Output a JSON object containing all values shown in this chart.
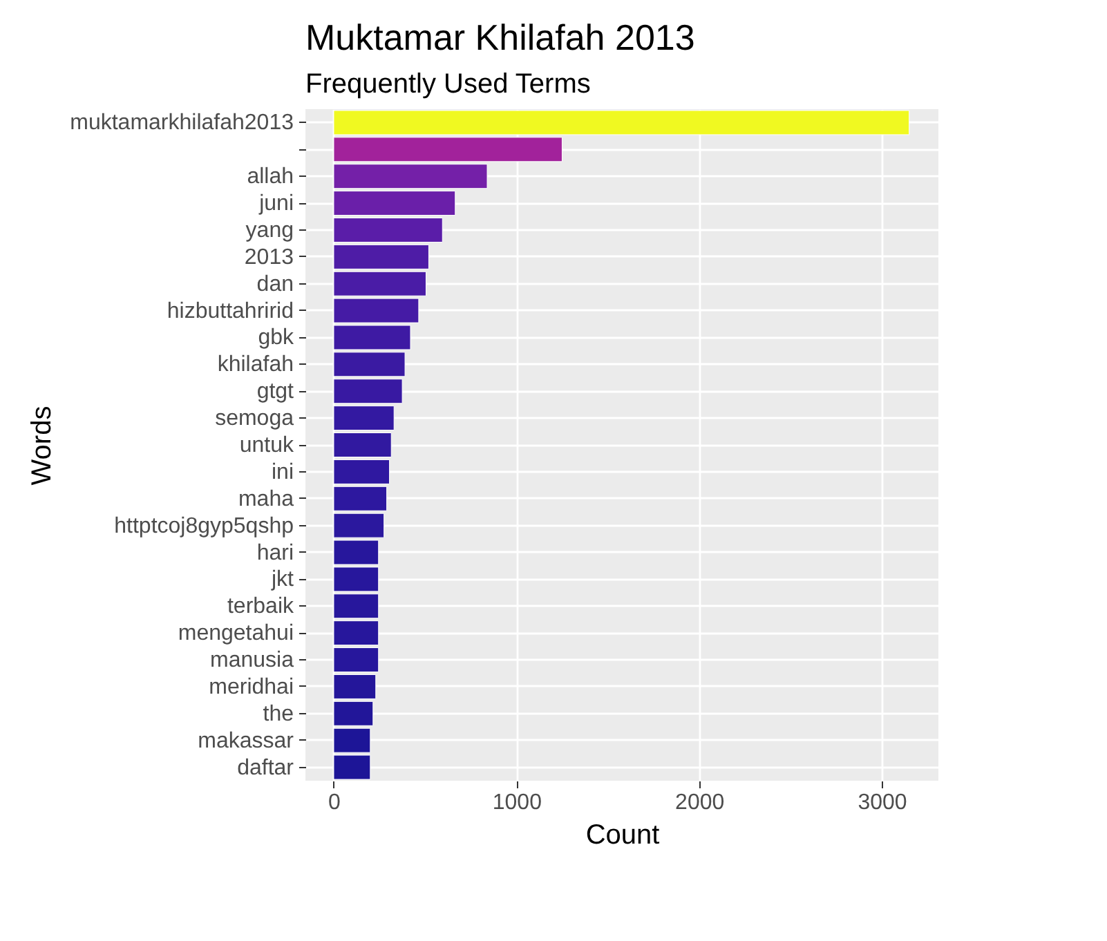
{
  "chart_data": {
    "type": "bar",
    "orientation": "horizontal",
    "title": "Muktamar Khilafah 2013",
    "subtitle": "Frequently Used Terms",
    "xlabel": "Count",
    "ylabel": "Words",
    "categories": [
      "muktamarkhilafah2013",
      null,
      "allah",
      "juni",
      "yang",
      "2013",
      "dan",
      "hizbuttahririd",
      "gbk",
      "khilafah",
      "gtgt",
      "semoga",
      "untuk",
      "ini",
      "maha",
      "httptcoj8gyp5qshp",
      "hari",
      "jkt",
      "terbaik",
      "mengetahui",
      "manusia",
      "meridhai",
      "the",
      "makassar",
      "daftar"
    ],
    "values": [
      3150,
      1250,
      840,
      665,
      595,
      520,
      505,
      465,
      420,
      390,
      375,
      330,
      315,
      305,
      290,
      275,
      245,
      245,
      245,
      245,
      245,
      230,
      215,
      200,
      200
    ],
    "colors": [
      "#f0f921",
      "#a2229b",
      "#7420a8",
      "#6a1fa9",
      "#5a1da8",
      "#4e1ca6",
      "#4a1ca6",
      "#451ba5",
      "#3e1aa3",
      "#3a1aa2",
      "#3819a2",
      "#3319a1",
      "#3119a0",
      "#2f18a0",
      "#2d189f",
      "#2b189e",
      "#27179c",
      "#27179c",
      "#27179c",
      "#27179c",
      "#27179c",
      "#24169a",
      "#221699",
      "#1d1597",
      "#1d1597"
    ],
    "xlim": [
      -155,
      3310
    ],
    "xticks": [
      0,
      1000,
      2000,
      3000
    ],
    "grid": true,
    "legend": false
  }
}
